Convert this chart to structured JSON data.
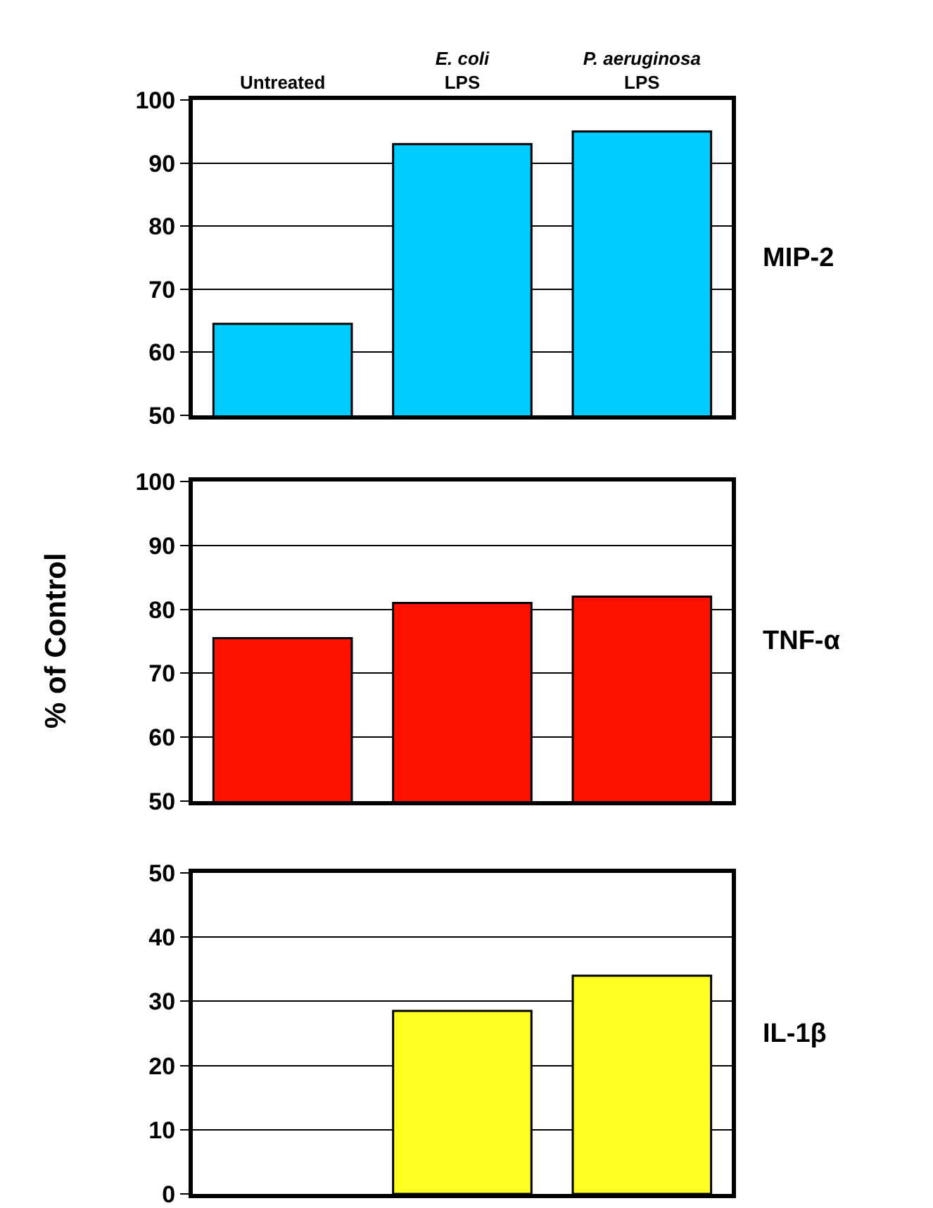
{
  "chart_data": [
    {
      "type": "bar",
      "categories": [
        "Untreated",
        "E. coli\nLPS",
        "P. aeruginosa\nLPS"
      ],
      "series": [
        {
          "name": "MIP-2",
          "color": "#00ccff",
          "values": [
            64.5,
            93,
            95
          ]
        }
      ],
      "ylim": [
        50,
        100
      ],
      "yticks": [
        50,
        60,
        70,
        80,
        90,
        100
      ],
      "grid": "y"
    },
    {
      "type": "bar",
      "ylabel": "% of Control",
      "categories": [
        null,
        null,
        null
      ],
      "series": [
        {
          "name": "TNF-α",
          "color": "#ff1100",
          "values": [
            75.5,
            81,
            82
          ]
        }
      ],
      "ylim": [
        50,
        100
      ],
      "yticks": [
        50,
        60,
        70,
        80,
        90,
        100
      ],
      "grid": "y",
      "tick_labels": "y"
    },
    {
      "type": "bar",
      "categories": [
        null,
        null,
        null
      ],
      "series": [
        {
          "name": "IL-1β",
          "color": "#ffff22",
          "values": [
            0,
            28.5,
            34
          ]
        }
      ],
      "ylim": [
        0,
        50
      ],
      "yticks": [
        0,
        10,
        20,
        30,
        40,
        50
      ],
      "grid": "y",
      "tick_labels": "y"
    }
  ]
}
